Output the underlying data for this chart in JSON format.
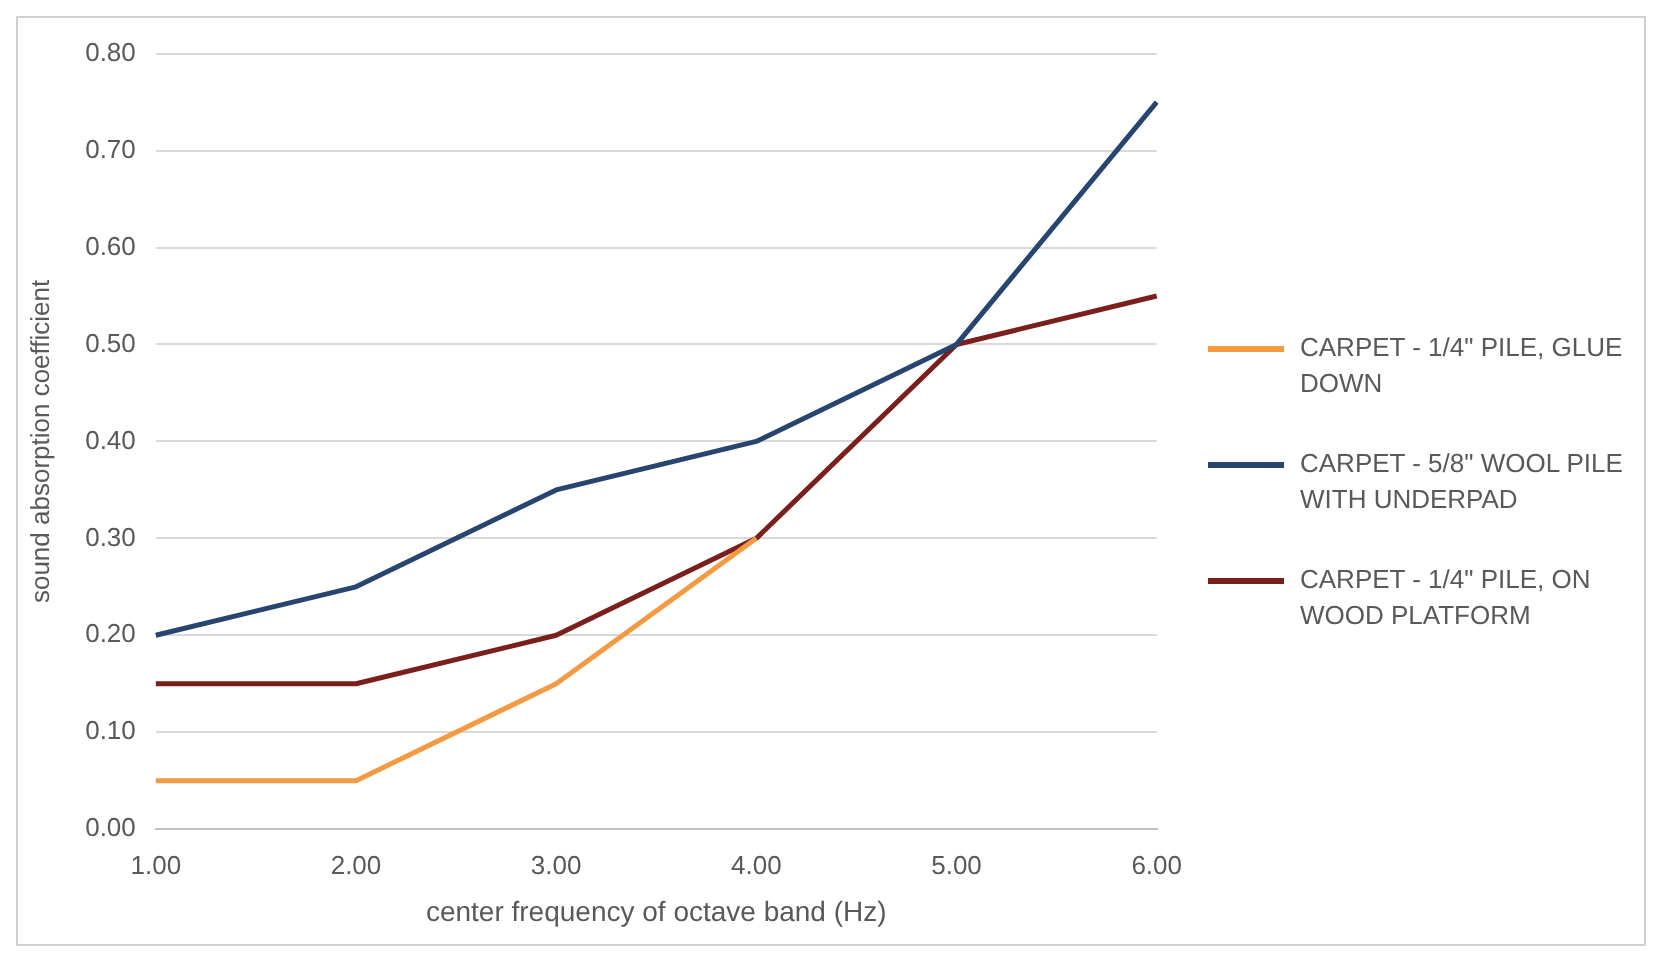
{
  "chart_data": {
    "type": "line",
    "xlabel": "center frequency of octave band (Hz)",
    "ylabel": "sound absorption coefficient",
    "categories": [
      "1.00",
      "2.00",
      "3.00",
      "4.00",
      "5.00",
      "6.00"
    ],
    "series": [
      {
        "name": "CARPET - 1/4\" PILE, GLUE DOWN",
        "color": "#f39a42",
        "values": [
          0.05,
          0.05,
          0.15,
          0.3,
          null,
          null
        ]
      },
      {
        "name": "CARPET - 5/8\" WOOL PILE WITH UNDERPAD",
        "color": "#27456f",
        "values": [
          0.2,
          0.25,
          0.35,
          0.4,
          0.5,
          0.75
        ]
      },
      {
        "name": "CARPET - 1/4\" PILE, ON WOOD PLATFORM",
        "color": "#7a1f1c",
        "values": [
          0.15,
          0.15,
          0.2,
          0.3,
          0.5,
          0.55
        ]
      }
    ],
    "ylim": [
      0,
      0.8
    ],
    "yticks": [
      {
        "value": 0,
        "label": "0.00"
      },
      {
        "value": 0.1,
        "label": "0.10"
      },
      {
        "value": 0.2,
        "label": "0.20"
      },
      {
        "value": 0.3,
        "label": "0.30"
      },
      {
        "value": 0.4,
        "label": "0.40"
      },
      {
        "value": 0.5,
        "label": "0.50"
      },
      {
        "value": 0.6,
        "label": "0.60"
      },
      {
        "value": 0.7,
        "label": "0.70"
      },
      {
        "value": 0.8,
        "label": "0.80"
      }
    ],
    "grid": "y",
    "legend": "right",
    "marker": "none",
    "line_style": "solid"
  }
}
